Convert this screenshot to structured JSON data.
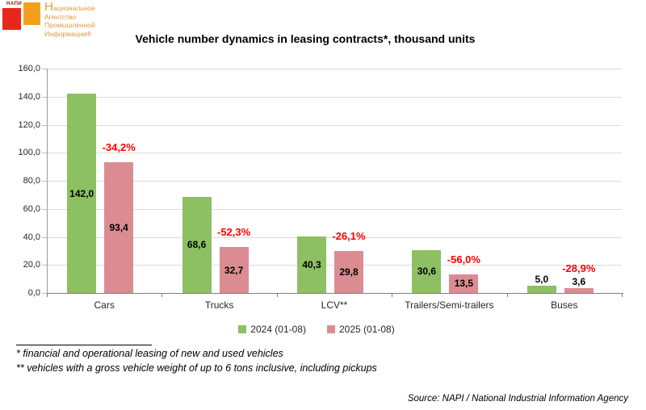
{
  "logo": {
    "wordmark": "НАПИ",
    "line1_initial": "Н",
    "line1_rest": "ациональное",
    "line2": "Агентство",
    "line3": "Промышленной",
    "line4": "Информации®",
    "colors": {
      "red_square": "#E8271B",
      "orange_square": "#F2A11F",
      "text": "#E09A3E"
    }
  },
  "chart_data": {
    "type": "bar",
    "title": "Vehicle number dynamics in leasing contracts*, thousand units",
    "categories": [
      "Cars",
      "Trucks",
      "LCV**",
      "Trailers/Semi-trailers",
      "Buses"
    ],
    "series": [
      {
        "name": "2024 (01-08)",
        "color": "#8CC063",
        "values": [
          142.0,
          68.6,
          40.3,
          30.6,
          5.0
        ],
        "labels": [
          "142,0",
          "68,6",
          "40,3",
          "30,6",
          "5,0"
        ]
      },
      {
        "name": "2025 (01-08)",
        "color": "#DB8C92",
        "values": [
          93.4,
          32.7,
          29.8,
          13.5,
          3.6
        ],
        "labels": [
          "93,4",
          "32,7",
          "29,8",
          "13,5",
          "3,6"
        ]
      }
    ],
    "change_labels": [
      "-34,2%",
      "-52,3%",
      "-26,1%",
      "-56,0%",
      "-28,9%"
    ],
    "change_color": "#FF0000",
    "xlabel": "",
    "ylabel": "",
    "ylim": [
      0,
      160
    ],
    "ytick_step": 20,
    "ytick_labels": [
      "0,0",
      "20,0",
      "40,0",
      "60,0",
      "80,0",
      "100,0",
      "120,0",
      "140,0",
      "160,0"
    ],
    "grid": true,
    "legend_position": "bottom"
  },
  "footnotes": [
    "* financial and operational leasing of new and used vehicles",
    "** vehicles with a gross vehicle weight of up to 6 tons inclusive, including pickups"
  ],
  "source": "Source: NAPI / National Industrial Information Agency"
}
